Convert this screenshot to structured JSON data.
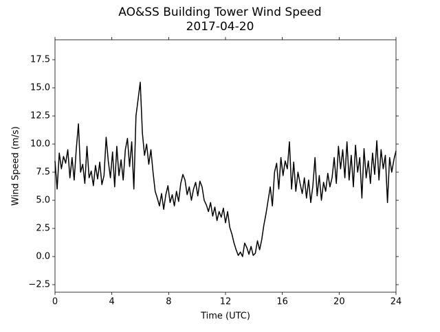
{
  "chart_data": {
    "type": "line",
    "title": "AO&SS Building Tower Wind Speed",
    "subtitle": "2017-04-20",
    "x_label": "Time (UTC)",
    "y_label": "Wind Speed (m/s)",
    "color": "#000000",
    "x": [
      0,
      0.15,
      0.3,
      0.45,
      0.6,
      0.75,
      0.9,
      1.05,
      1.2,
      1.35,
      1.5,
      1.65,
      1.8,
      1.95,
      2.1,
      2.25,
      2.4,
      2.55,
      2.7,
      2.85,
      3.0,
      3.15,
      3.3,
      3.45,
      3.6,
      3.75,
      3.9,
      4.05,
      4.2,
      4.35,
      4.5,
      4.65,
      4.8,
      4.95,
      5.1,
      5.25,
      5.4,
      5.55,
      5.7,
      5.85,
      6.0,
      6.15,
      6.3,
      6.45,
      6.6,
      6.75,
      6.9,
      7.05,
      7.2,
      7.35,
      7.5,
      7.65,
      7.8,
      7.95,
      8.1,
      8.25,
      8.4,
      8.55,
      8.7,
      8.85,
      9.0,
      9.15,
      9.3,
      9.45,
      9.6,
      9.75,
      9.9,
      10.05,
      10.2,
      10.35,
      10.5,
      10.65,
      10.8,
      10.95,
      11.1,
      11.25,
      11.4,
      11.55,
      11.7,
      11.85,
      12.0,
      12.15,
      12.3,
      12.45,
      12.6,
      12.75,
      12.9,
      13.05,
      13.2,
      13.35,
      13.5,
      13.65,
      13.8,
      13.95,
      14.1,
      14.25,
      14.4,
      14.55,
      14.7,
      14.85,
      15.0,
      15.15,
      15.3,
      15.45,
      15.6,
      15.75,
      15.9,
      16.05,
      16.2,
      16.35,
      16.5,
      16.65,
      16.8,
      16.95,
      17.1,
      17.25,
      17.4,
      17.55,
      17.7,
      17.85,
      18.0,
      18.15,
      18.3,
      18.45,
      18.6,
      18.75,
      18.9,
      19.05,
      19.2,
      19.35,
      19.5,
      19.65,
      19.8,
      19.95,
      20.1,
      20.25,
      20.4,
      20.55,
      20.7,
      20.85,
      21.0,
      21.15,
      21.3,
      21.45,
      21.6,
      21.75,
      21.9,
      22.05,
      22.2,
      22.35,
      22.5,
      22.65,
      22.8,
      22.95,
      23.1,
      23.25,
      23.4,
      23.55,
      23.7,
      23.85,
      24.0
    ],
    "values": [
      8.5,
      6.0,
      9.2,
      7.8,
      8.9,
      8.3,
      9.5,
      7.0,
      8.8,
      6.8,
      9.6,
      11.8,
      7.5,
      8.2,
      6.5,
      9.8,
      7.0,
      7.6,
      6.3,
      8.1,
      6.9,
      8.4,
      6.4,
      7.2,
      10.6,
      8.5,
      7.0,
      9.3,
      6.2,
      9.8,
      7.2,
      8.6,
      6.8,
      9.5,
      10.5,
      8.0,
      10.2,
      6.0,
      12.5,
      14.0,
      15.5,
      11.0,
      9.0,
      10.0,
      8.2,
      9.5,
      7.5,
      5.8,
      5.2,
      4.5,
      5.6,
      4.2,
      5.5,
      6.3,
      4.8,
      5.5,
      4.5,
      5.8,
      4.9,
      6.5,
      7.3,
      6.8,
      5.5,
      6.2,
      5.0,
      6.0,
      6.6,
      5.4,
      6.7,
      6.2,
      5.0,
      4.6,
      4.0,
      4.8,
      3.6,
      4.4,
      3.2,
      4.0,
      3.5,
      4.3,
      3.0,
      4.0,
      2.6,
      2.0,
      1.2,
      0.6,
      0.1,
      0.4,
      0.0,
      1.2,
      0.8,
      0.2,
      0.9,
      0.1,
      0.3,
      1.4,
      0.6,
      1.5,
      2.8,
      3.8,
      5.0,
      6.2,
      4.5,
      7.5,
      8.3,
      6.0,
      8.8,
      7.2,
      8.5,
      7.8,
      10.2,
      6.0,
      8.4,
      5.8,
      7.5,
      6.5,
      5.6,
      7.0,
      5.2,
      6.8,
      4.8,
      6.3,
      8.8,
      5.4,
      7.2,
      5.0,
      6.6,
      5.8,
      7.4,
      6.2,
      7.0,
      8.8,
      6.5,
      9.8,
      7.8,
      9.5,
      7.0,
      10.2,
      6.8,
      9.0,
      6.2,
      9.9,
      7.5,
      8.8,
      5.2,
      9.6,
      7.0,
      8.5,
      6.5,
      9.2,
      7.3,
      10.3,
      6.8,
      9.5,
      7.8,
      9.0,
      4.8,
      8.8,
      7.5,
      8.6,
      9.4
    ],
    "xlim": [
      0,
      24
    ],
    "xticks": [
      0,
      4,
      8,
      12,
      16,
      20,
      24
    ],
    "ylim": [
      -3.17,
      19.27
    ],
    "yticks": [
      {
        "value": -2.5,
        "label": "−2.5"
      },
      {
        "value": 0,
        "label": "0.0"
      },
      2.5,
      {
        "value": 5,
        "label": "5.0"
      },
      7.5,
      {
        "value": 10,
        "label": "10.0"
      },
      12.5,
      {
        "value": 15,
        "label": "15.0"
      },
      17.5
    ],
    "grid": false
  }
}
